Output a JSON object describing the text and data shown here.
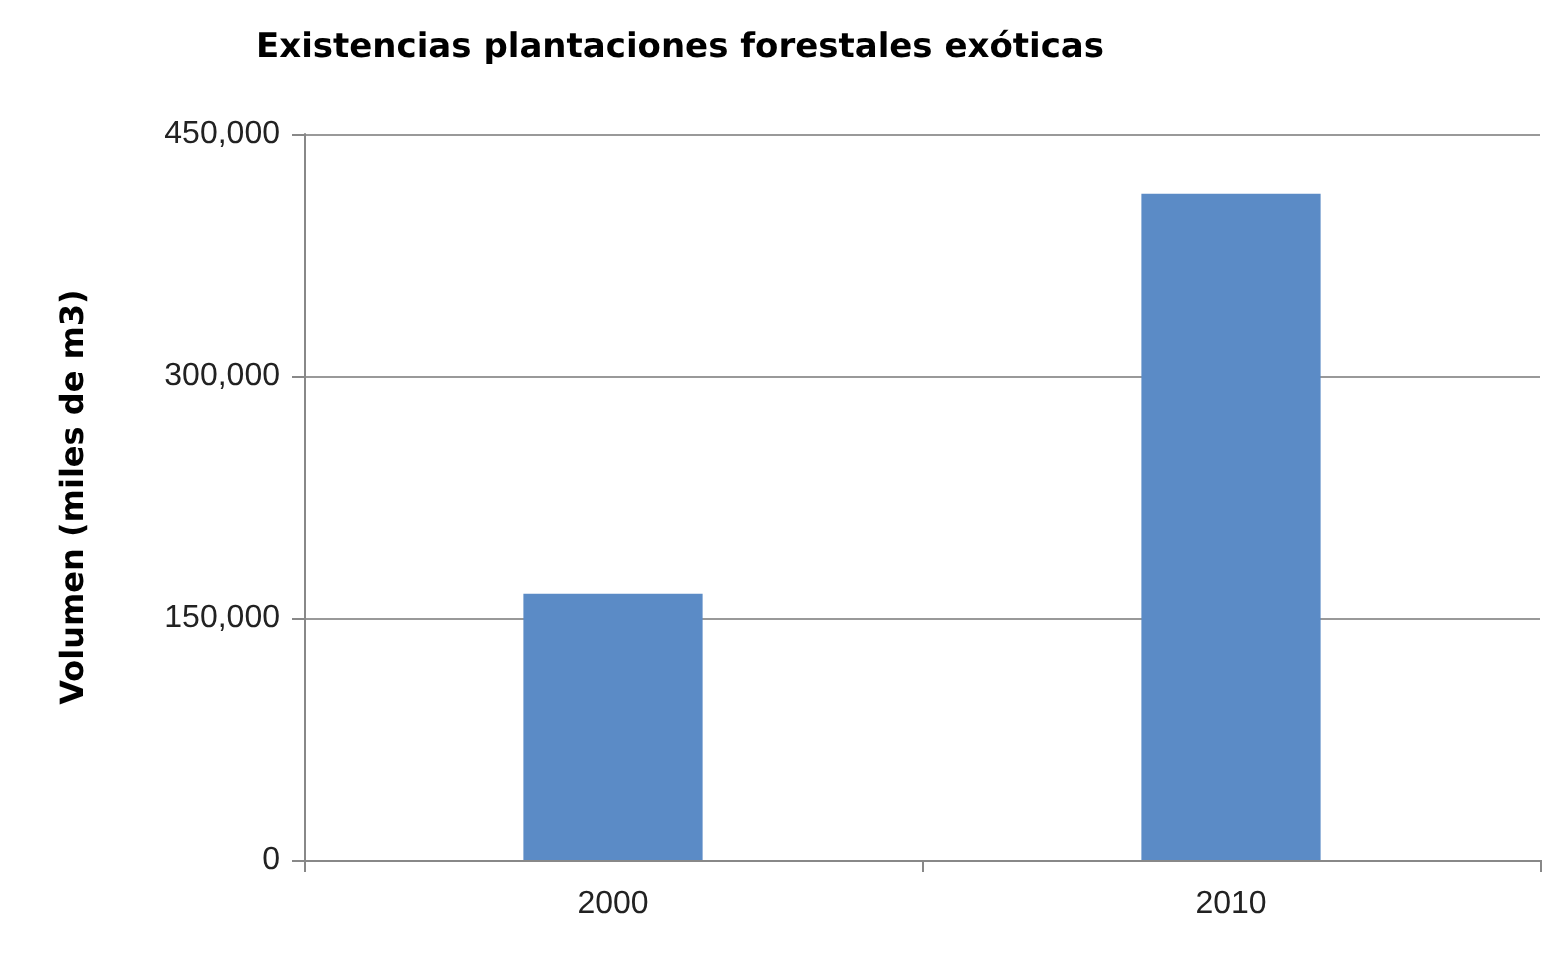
{
  "chart_data": {
    "type": "bar",
    "title": "Existencias plantaciones forestales exóticas",
    "ylabel": "Volumen (miles de m3)",
    "categories": [
      "2000",
      "2010"
    ],
    "values": [
      165000,
      413000
    ],
    "color": "#5b8bc6",
    "ylim": [
      0,
      450000
    ],
    "yticks": [
      {
        "value": 0,
        "label": "0"
      },
      {
        "value": 150000,
        "label": "150,000"
      },
      {
        "value": 300000,
        "label": "300,000"
      },
      {
        "value": 450000,
        "label": "450,000"
      }
    ],
    "grid": "y"
  }
}
